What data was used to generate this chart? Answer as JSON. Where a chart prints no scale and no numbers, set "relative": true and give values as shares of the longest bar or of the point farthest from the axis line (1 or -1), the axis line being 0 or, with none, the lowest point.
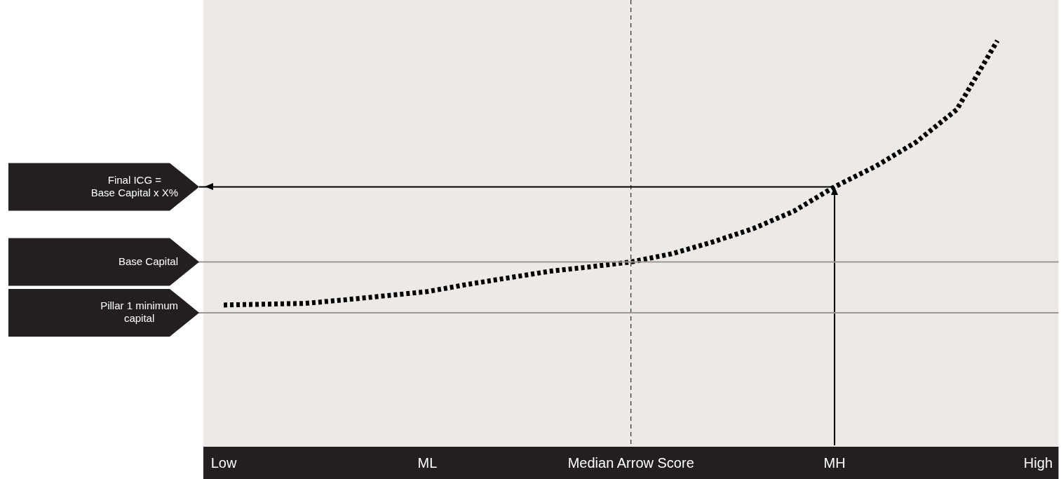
{
  "chart_data": {
    "type": "line",
    "relative": true,
    "legend": false,
    "grid": false,
    "marker": "none",
    "line_style": "dotted",
    "categories": [
      "Low",
      null,
      null,
      null,
      null,
      "ML",
      null,
      null,
      null,
      null,
      "Median Arrow Score",
      null,
      null,
      null,
      null,
      "MH",
      null,
      null,
      null,
      null,
      "High"
    ],
    "series": [
      {
        "color": "#000000",
        "values": [
          0.349,
          0.351,
          0.353,
          0.362,
          0.372,
          0.382,
          0.4,
          0.416,
          0.432,
          0.443,
          0.455,
          0.475,
          0.504,
          0.537,
          0.58,
          0.64,
          0.69,
          0.75,
          0.83,
          1.0,
          null
        ]
      }
    ],
    "ref_lines": [
      {
        "axis": "x",
        "value": "Median Arrow Score",
        "color": "#000000",
        "line_style": "dashed"
      },
      {
        "axis": "x",
        "value": "MH",
        "color": "#000000",
        "line_style": "solid"
      },
      {
        "axis": "y",
        "value": 0.64,
        "label": "Final ICG =\nBase Capital x X%",
        "color": "#000000",
        "line_style": "solid"
      },
      {
        "axis": "y",
        "value": 0.455,
        "label": "Base Capital",
        "color": "#a09590",
        "line_style": "solid"
      },
      {
        "axis": "y",
        "value": 0.33,
        "label": "Pillar 1 minimum\ncapital",
        "color": "#a09590",
        "line_style": "solid"
      }
    ]
  }
}
